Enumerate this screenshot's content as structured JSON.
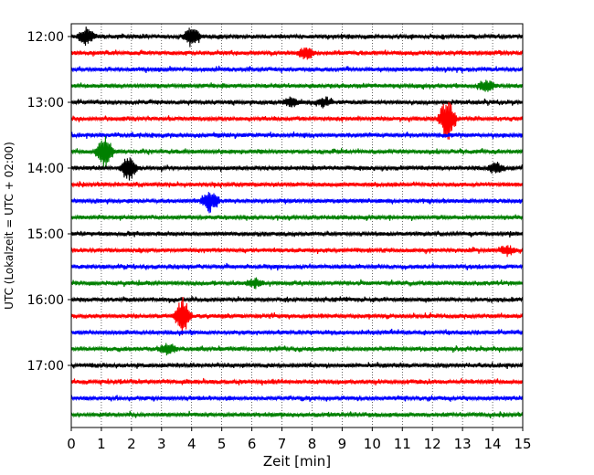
{
  "chart_data": {
    "type": "line",
    "title": "",
    "xlabel": "Zeit  [min]",
    "ylabel": "UTC (Lokalzeit = UTC + 02:00)",
    "xlim": [
      0,
      15
    ],
    "x_ticks": [
      "0",
      "1",
      "2",
      "3",
      "4",
      "5",
      "6",
      "7",
      "8",
      "9",
      "10",
      "11",
      "12",
      "13",
      "14",
      "15"
    ],
    "y_ticks": [
      "12:00",
      "13:00",
      "14:00",
      "15:00",
      "16:00",
      "17:00"
    ],
    "grid": "vertical dotted lines at each minute",
    "legend": "none",
    "trace_interval_min": 15,
    "trace_colors": [
      "#000000",
      "#ff0000",
      "#0000ff",
      "#008000"
    ],
    "series": [
      {
        "start": "12:00",
        "events": [
          [
            0.5,
            1.0
          ],
          [
            4.0,
            1.0
          ]
        ]
      },
      {
        "start": "12:15",
        "events": [
          [
            7.8,
            0.7
          ]
        ]
      },
      {
        "start": "12:30",
        "events": []
      },
      {
        "start": "12:45",
        "events": [
          [
            13.8,
            0.6
          ]
        ]
      },
      {
        "start": "13:00",
        "events": [
          [
            7.3,
            0.5
          ],
          [
            8.4,
            0.5
          ]
        ]
      },
      {
        "start": "13:15",
        "events": [
          [
            12.5,
            2.5
          ]
        ]
      },
      {
        "start": "13:30",
        "events": []
      },
      {
        "start": "13:45",
        "events": [
          [
            1.1,
            2.0
          ]
        ]
      },
      {
        "start": "14:00",
        "events": [
          [
            1.9,
            1.4
          ],
          [
            14.1,
            0.6
          ]
        ]
      },
      {
        "start": "14:15",
        "events": []
      },
      {
        "start": "14:30",
        "events": [
          [
            4.6,
            1.2
          ]
        ]
      },
      {
        "start": "14:45",
        "events": []
      },
      {
        "start": "15:00",
        "events": []
      },
      {
        "start": "15:15",
        "events": [
          [
            14.5,
            0.5
          ]
        ]
      },
      {
        "start": "15:30",
        "events": []
      },
      {
        "start": "15:45",
        "events": [
          [
            6.1,
            0.5
          ]
        ]
      },
      {
        "start": "16:00",
        "events": []
      },
      {
        "start": "16:15",
        "events": [
          [
            3.7,
            2.0
          ]
        ]
      },
      {
        "start": "16:30",
        "events": []
      },
      {
        "start": "16:45",
        "events": [
          [
            3.2,
            0.6
          ]
        ]
      },
      {
        "start": "17:00",
        "events": []
      },
      {
        "start": "17:15",
        "events": []
      },
      {
        "start": "17:30",
        "events": []
      },
      {
        "start": "17:45",
        "events": []
      }
    ]
  }
}
